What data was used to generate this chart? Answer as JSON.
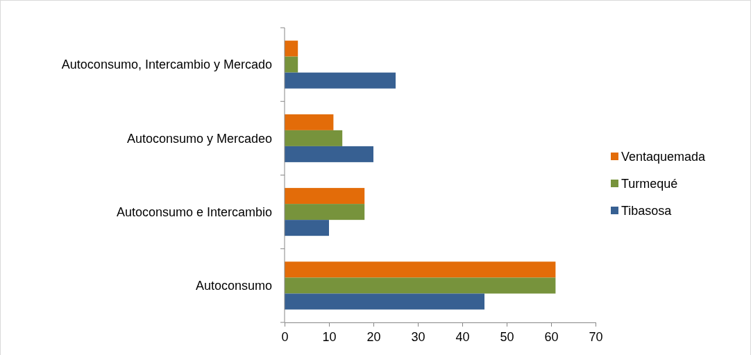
{
  "chart_data": {
    "type": "bar",
    "orientation": "horizontal",
    "categories": [
      "Autoconsumo, Intercambio y Mercado",
      "Autoconsumo y Mercadeo",
      "Autoconsumo e Intercambio",
      "Autoconsumo"
    ],
    "series": [
      {
        "name": "Ventaquemada",
        "color": "#e36c09",
        "values": [
          3,
          11,
          18,
          61
        ]
      },
      {
        "name": "Turmequé",
        "color": "#77933c",
        "values": [
          3,
          13,
          18,
          61
        ]
      },
      {
        "name": "Tibasosa",
        "color": "#376092",
        "values": [
          25,
          20,
          10,
          45
        ]
      }
    ],
    "xlim": [
      0,
      70
    ],
    "xticks": [
      0,
      10,
      20,
      30,
      40,
      50,
      60,
      70
    ],
    "grid": false,
    "legend": "right"
  }
}
